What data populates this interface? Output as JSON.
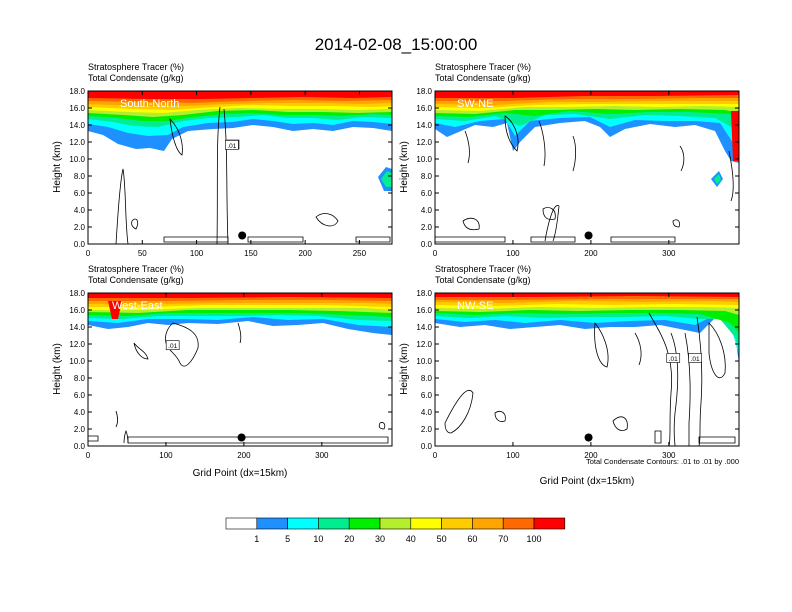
{
  "title": "2014-02-08_15:00:00",
  "colors": {
    "bins": [
      "#ffffff",
      "#1e90ff",
      "#00ffff",
      "#00ee90",
      "#00ee00",
      "#b4ee2d",
      "#ffff00",
      "#ffcc00",
      "#ffa500",
      "#ff6a00",
      "#ff0000"
    ],
    "outline": "#000000"
  },
  "colorbar": {
    "labels": [
      "1",
      "5",
      "10",
      "20",
      "30",
      "40",
      "50",
      "60",
      "70",
      "100"
    ]
  },
  "contour_note": "Total Condensate Contours: .01 to .01 by .000",
  "chart_data": [
    {
      "type": "heatmap",
      "label": "South-North",
      "line1": "Stratosphere Tracer   (%)",
      "line2": "Total Condensate   (g/kg)",
      "ylabel": "Height (km)",
      "xlabel": "",
      "xlim": [
        0,
        280
      ],
      "ylim": [
        0,
        18
      ],
      "xticks": [
        "0",
        "50",
        "100",
        "150",
        "200",
        "250"
      ],
      "xtick_values": [
        0,
        50,
        100,
        150,
        200,
        250
      ],
      "yticks": [
        "0.0",
        "2.0",
        "4.0",
        "6.0",
        "8.0",
        "10.0",
        "12.0",
        "14.0",
        "16.0",
        "18.0"
      ],
      "contour_labels": [
        {
          "text": ".01",
          "x": 132,
          "y": 11.6
        }
      ],
      "marker": {
        "x": 142,
        "y": 1.0
      }
    },
    {
      "type": "heatmap",
      "label": "SW-NE",
      "line1": "Stratosphere Tracer   (%)",
      "line2": "Total Condensate   (g/kg)",
      "ylabel": "Height (km)",
      "xlabel": "",
      "xlim": [
        0,
        390
      ],
      "ylim": [
        0,
        18
      ],
      "xticks": [
        "0",
        "100",
        "200",
        "300"
      ],
      "xtick_values": [
        0,
        100,
        200,
        300
      ],
      "yticks": [
        "0.0",
        "2.0",
        "4.0",
        "6.0",
        "8.0",
        "10.0",
        "12.0",
        "14.0",
        "16.0",
        "18.0"
      ],
      "contour_labels": [],
      "marker": {
        "x": 197,
        "y": 1.0
      }
    },
    {
      "type": "heatmap",
      "label": "West-East",
      "line1": "Stratosphere Tracer   (%)",
      "line2": "Total Condensate   (g/kg)",
      "ylabel": "Height (km)",
      "xlabel": "Grid Point (dx=15km)",
      "xlim": [
        0,
        390
      ],
      "ylim": [
        0,
        18
      ],
      "xticks": [
        "0",
        "100",
        "200",
        "300"
      ],
      "xtick_values": [
        0,
        100,
        200,
        300
      ],
      "yticks": [
        "0.0",
        "2.0",
        "4.0",
        "6.0",
        "8.0",
        "10.0",
        "12.0",
        "14.0",
        "16.0",
        "18.0"
      ],
      "contour_labels": [
        {
          "text": ".01",
          "x": 108,
          "y": 11.8
        }
      ],
      "marker": {
        "x": 197,
        "y": 1.0
      }
    },
    {
      "type": "heatmap",
      "label": "NW-SE",
      "line1": "Stratosphere Tracer   (%)",
      "line2": "Total Condensate   (g/kg)",
      "ylabel": "Height (km)",
      "xlabel": "Grid Point (dx=15km)",
      "xlim": [
        0,
        390
      ],
      "ylim": [
        0,
        18
      ],
      "xticks": [
        "0",
        "100",
        "200",
        "300"
      ],
      "xtick_values": [
        0,
        100,
        200,
        300
      ],
      "yticks": [
        "0.0",
        "2.0",
        "4.0",
        "6.0",
        "8.0",
        "10.0",
        "12.0",
        "14.0",
        "16.0",
        "18.0"
      ],
      "contour_labels": [
        {
          "text": ".01",
          "x": 305,
          "y": 10.3
        },
        {
          "text": ".01",
          "x": 333,
          "y": 10.3
        }
      ],
      "marker": {
        "x": 197,
        "y": 1.0
      }
    }
  ]
}
